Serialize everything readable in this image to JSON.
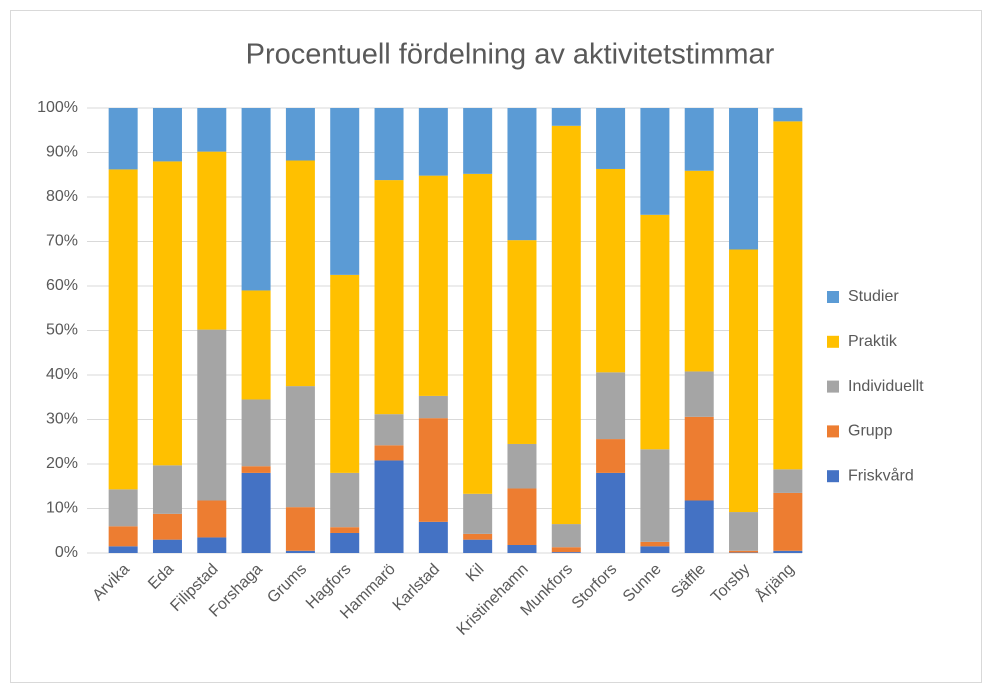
{
  "chart_data": {
    "type": "stacked_bar",
    "title": "Procentuell fördelning av aktivitetstimmar",
    "categories": [
      "Arvika",
      "Eda",
      "Filipstad",
      "Forshaga",
      "Grums",
      "Hagfors",
      "Hammarö",
      "Karlstad",
      "Kil",
      "Kristinehamn",
      "Munkfors",
      "Storfors",
      "Sunne",
      "Säffle",
      "Torsby",
      "Årjäng"
    ],
    "series": [
      {
        "name": "Friskvård",
        "color": "#4472c4",
        "values": [
          1.5,
          3,
          3.5,
          18,
          0.5,
          4.5,
          20.8,
          7,
          3,
          1.8,
          0.2,
          18,
          1.5,
          11.8,
          0.1,
          0.5
        ]
      },
      {
        "name": "Grupp",
        "color": "#ed7d31",
        "values": [
          4.5,
          5.8,
          8.3,
          1.5,
          9.8,
          1.3,
          3.4,
          23.3,
          1.3,
          12.7,
          1.1,
          7.6,
          1,
          18.8,
          0.4,
          13
        ]
      },
      {
        "name": "Individuellt",
        "color": "#a5a5a5",
        "values": [
          8.3,
          10.9,
          38.4,
          15,
          27.2,
          12.2,
          7,
          5,
          9,
          10,
          5.2,
          15,
          20.8,
          10.2,
          8.7,
          5.3
        ]
      },
      {
        "name": "Praktik",
        "color": "#ffc000",
        "values": [
          71.9,
          68.3,
          40,
          24.5,
          50.7,
          44.5,
          52.6,
          49.5,
          71.9,
          45.8,
          89.5,
          45.7,
          52.7,
          45.1,
          59,
          78.2
        ]
      },
      {
        "name": "Studier",
        "color": "#5b9bd5",
        "values": [
          13.8,
          12,
          9.8,
          41,
          11.8,
          37.5,
          16.2,
          15.2,
          14.8,
          29.7,
          4,
          13.7,
          24,
          14.1,
          31.8,
          3
        ]
      }
    ],
    "ylim": [
      0,
      100
    ],
    "yticks": [
      {
        "value": 0,
        "label": "0%"
      },
      {
        "value": 10,
        "label": "10%"
      },
      {
        "value": 20,
        "label": "20%"
      },
      {
        "value": 30,
        "label": "30%"
      },
      {
        "value": 40,
        "label": "40%"
      },
      {
        "value": 50,
        "label": "50%"
      },
      {
        "value": 60,
        "label": "60%"
      },
      {
        "value": 70,
        "label": "70%"
      },
      {
        "value": 80,
        "label": "80%"
      },
      {
        "value": 90,
        "label": "90%"
      },
      {
        "value": 100,
        "label": "100%"
      }
    ],
    "grid": true,
    "legend": "right"
  }
}
